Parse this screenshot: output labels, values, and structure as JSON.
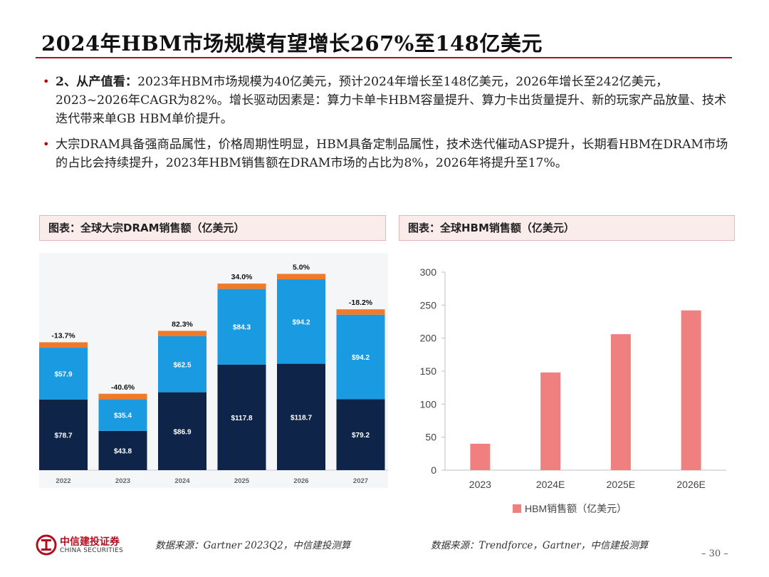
{
  "title": "2024年HBM市场规模有望增长267%至148亿美元",
  "bullets": [
    {
      "lead": "2、从产值看：",
      "text": "2023年HBM市场规模为40亿美元，预计2024年增长至148亿美元，2026年增长至242亿美元，2023~2026年CAGR为82%。增长驱动因素是：算力卡单卡HBM容量提升、算力卡出货量提升、新的玩家产品放量、技术迭代带来单GB HBM单价提升。"
    },
    {
      "lead": "",
      "text": "大宗DRAM具备强商品属性，价格周期性明显，HBM具备定制品属性，技术迭代催动ASP提升，长期看HBM在DRAM市场的占比会持续提升，2023年HBM销售额在DRAM市场的占比为8%，2026年将提升至17%。"
    }
  ],
  "chart_left_caption": "图表：全球大宗DRAM销售额（亿美元）",
  "chart_right_caption": "图表：全球HBM销售额（亿美元）",
  "chart_data": [
    {
      "type": "bar",
      "stacked": true,
      "title": "全球大宗DRAM销售额（亿美元）",
      "categories": [
        "2022",
        "2023",
        "2024",
        "2025",
        "2026",
        "2027"
      ],
      "series": [
        {
          "name": "bottom",
          "color": "#0e2549",
          "values": [
            78.7,
            43.8,
            86.9,
            117.8,
            118.7,
            79.2
          ],
          "labels": [
            "$78.7",
            "$43.8",
            "$86.9",
            "$117.8",
            "$118.7",
            "$79.2"
          ]
        },
        {
          "name": "middle",
          "color": "#1a9ae0",
          "values": [
            57.9,
            35.4,
            62.5,
            84.3,
            94.2,
            94.2
          ],
          "labels": [
            "$57.9",
            "$35.4",
            "$62.5",
            "$84.3",
            "$94.2",
            "$94.2"
          ]
        },
        {
          "name": "top",
          "color": "#f07a28",
          "values": [
            6,
            6,
            6,
            6,
            6,
            6
          ]
        }
      ],
      "growth_labels": [
        "-13.7%",
        "-40.6%",
        "82.3%",
        "34.0%",
        "5.0%",
        "-18.2%"
      ],
      "ylim": [
        0,
        232
      ]
    },
    {
      "type": "bar",
      "title": "全球HBM销售额（亿美元）",
      "categories": [
        "2023",
        "2024E",
        "2025E",
        "2026E"
      ],
      "values": [
        40,
        148,
        206,
        242
      ],
      "yticks": [
        "0",
        "50",
        "100",
        "150",
        "200",
        "250",
        "300"
      ],
      "ylim": [
        0,
        300
      ],
      "legend": "HBM销售额（亿美元）",
      "color": "#f08080"
    }
  ],
  "source_left": "数据来源：Gartner 2023Q2，中信建投测算",
  "source_right": "数据来源：Trendforce，Gartner，中信建投测算",
  "logo": {
    "cn": "中信建投证券",
    "en": "CHINA SECURITIES"
  },
  "page_number": "– 30 –",
  "colors": {
    "accent": "#b00f1f",
    "caption_bg": "#fbecec"
  }
}
